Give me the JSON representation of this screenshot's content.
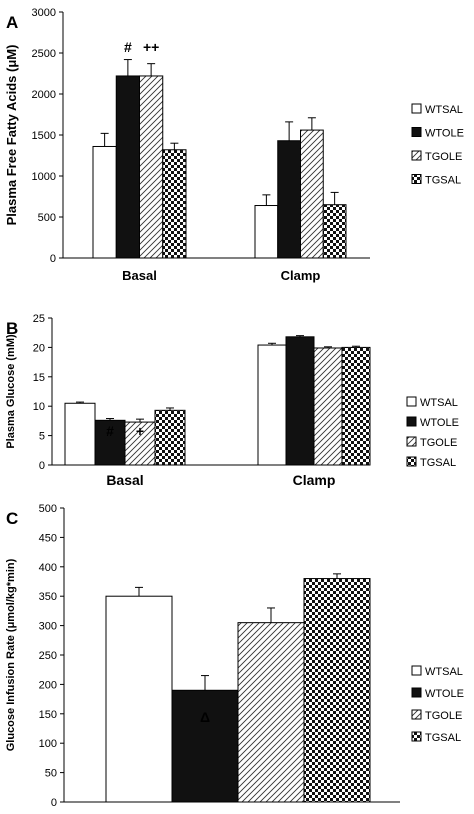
{
  "chart_data": [
    {
      "type": "bar",
      "panel_label": "A",
      "ylabel": "Plasma Free Fatty Acids (μM)",
      "ylim": [
        0,
        3000
      ],
      "yticks": [
        "0",
        "500",
        "1000",
        "1500",
        "2000",
        "2500",
        "3000"
      ],
      "categories": [
        "Basal",
        "Clamp"
      ],
      "series": [
        {
          "name": "WTSAL",
          "values": [
            1360,
            640
          ],
          "errors": [
            160,
            130
          ]
        },
        {
          "name": "WTOLE",
          "values": [
            2220,
            1430
          ],
          "errors": [
            200,
            230
          ]
        },
        {
          "name": "TGOLE",
          "values": [
            2220,
            1560
          ],
          "errors": [
            150,
            150
          ]
        },
        {
          "name": "TGSAL",
          "values": [
            1320,
            650
          ],
          "errors": [
            80,
            150
          ]
        }
      ],
      "annotations": [
        {
          "text": "#",
          "category": "Basal",
          "series": "WTOLE"
        },
        {
          "text": "++",
          "category": "Basal",
          "series": "TGOLE"
        }
      ],
      "legend_position": "right"
    },
    {
      "type": "bar",
      "panel_label": "B",
      "ylabel": "Plasma Glucose (mM)",
      "ylim": [
        0,
        25
      ],
      "yticks": [
        "0",
        "5",
        "10",
        "15",
        "20",
        "25"
      ],
      "categories": [
        "Basal",
        "Clamp"
      ],
      "series": [
        {
          "name": "WTSAL",
          "values": [
            10.5,
            20.4
          ],
          "errors": [
            0.2,
            0.3
          ]
        },
        {
          "name": "WTOLE",
          "values": [
            7.6,
            21.8
          ],
          "errors": [
            0.3,
            0.2
          ]
        },
        {
          "name": "TGOLE",
          "values": [
            7.3,
            19.9
          ],
          "errors": [
            0.5,
            0.2
          ]
        },
        {
          "name": "TGSAL",
          "values": [
            9.3,
            20.0
          ],
          "errors": [
            0.4,
            0.2
          ]
        }
      ],
      "annotations": [
        {
          "text": "#",
          "category": "Basal",
          "series": "WTOLE"
        },
        {
          "text": "+",
          "category": "Basal",
          "series": "TGOLE"
        }
      ],
      "legend_position": "right"
    },
    {
      "type": "bar",
      "panel_label": "C",
      "ylabel": "Glucose Infusion Rate (μmol/kg*min)",
      "ylim": [
        0,
        500
      ],
      "yticks": [
        "0",
        "50",
        "100",
        "150",
        "200",
        "250",
        "300",
        "350",
        "400",
        "450",
        "500"
      ],
      "categories": [
        ""
      ],
      "series": [
        {
          "name": "WTSAL",
          "values": [
            350
          ],
          "errors": [
            15
          ]
        },
        {
          "name": "WTOLE",
          "values": [
            190
          ],
          "errors": [
            25
          ]
        },
        {
          "name": "TGOLE",
          "values": [
            305
          ],
          "errors": [
            25
          ]
        },
        {
          "name": "TGSAL",
          "values": [
            380
          ],
          "errors": [
            8
          ]
        }
      ],
      "annotations": [
        {
          "text": "Δ",
          "category": "",
          "series": "WTOLE"
        }
      ],
      "legend_position": "right"
    }
  ],
  "colors": {
    "WTSAL": "#ffffff",
    "WTOLE": "#111111",
    "TGOLE": "diagonal-hatch",
    "TGSAL": "checkerboard"
  }
}
